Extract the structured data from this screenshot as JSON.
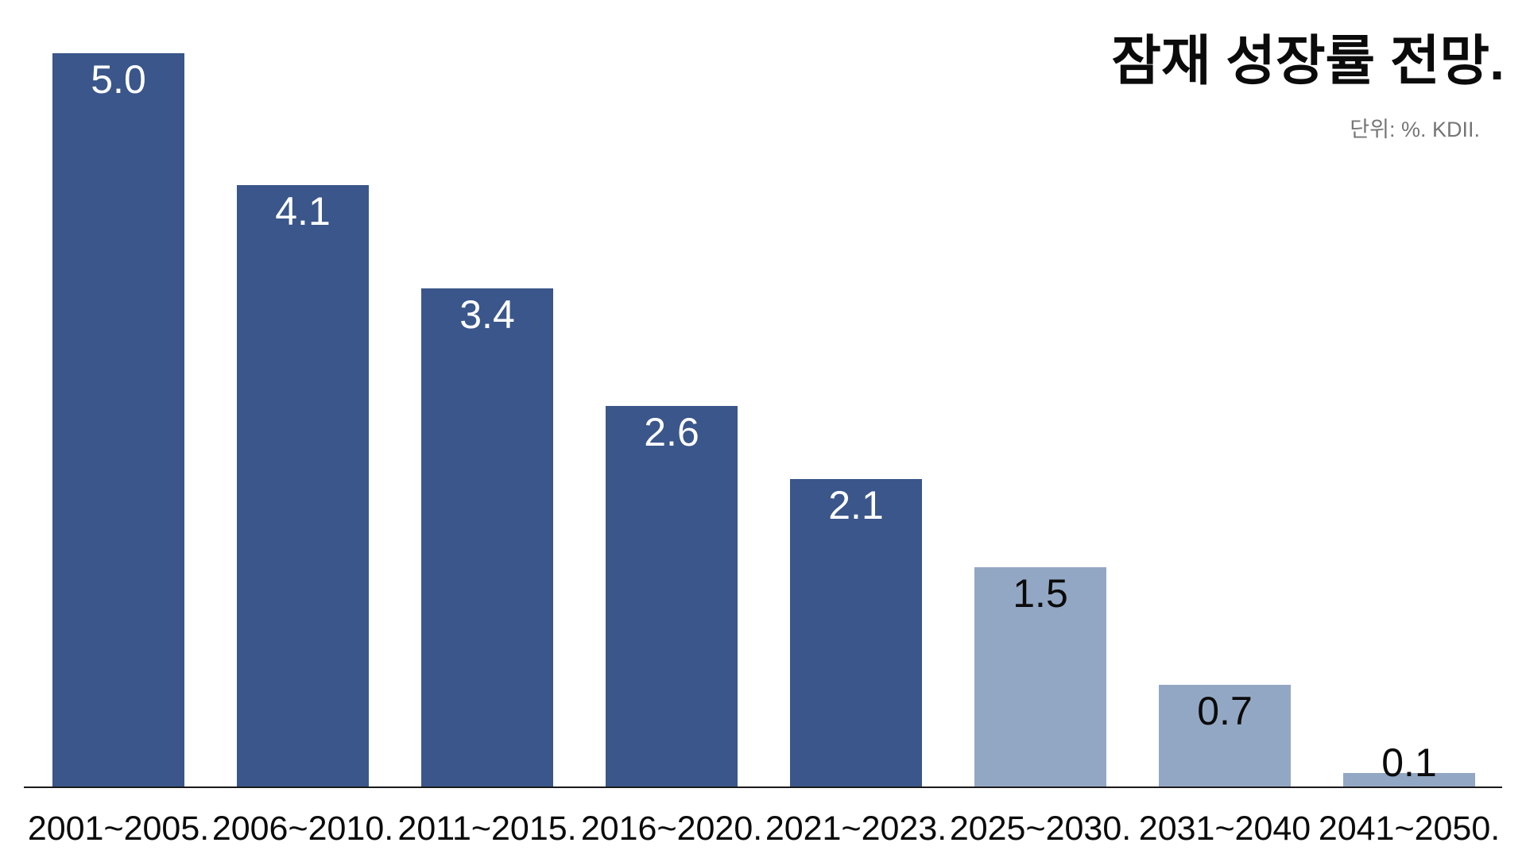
{
  "header": {
    "title": "잠재 성장률 전망.",
    "unit_source": "단위: %. KDII."
  },
  "chart_data": {
    "type": "bar",
    "title": "잠재 성장률 전망.",
    "subtitle": "단위: %. KDII.",
    "categories": [
      "2001~2005.",
      "2006~2010.",
      "2011~2015.",
      "2016~2020.",
      "2021~2023.",
      "2025~2030.",
      "2031~2040",
      "2041~2050."
    ],
    "values": [
      5.0,
      4.1,
      3.4,
      2.6,
      2.1,
      1.5,
      0.7,
      0.1
    ],
    "value_labels": [
      "5.0",
      "4.1",
      "3.4",
      "2.6",
      "2.1",
      "1.5",
      "0.7",
      "0.1"
    ],
    "bar_colors": [
      "#3A568A",
      "#3A568A",
      "#3A568A",
      "#3A568A",
      "#3A568A",
      "#92A7C3",
      "#92A7C3",
      "#92A7C3"
    ],
    "value_label_colors": [
      "#ffffff",
      "#ffffff",
      "#ffffff",
      "#ffffff",
      "#ffffff",
      "#0b0b0b",
      "#0b0b0b",
      "#0b0b0b"
    ],
    "series_note": {
      "historical_color": "#3A568A",
      "forecast_color": "#92A7C3",
      "forecast_starts_at_category": "2025~2030."
    },
    "xlabel": "",
    "ylabel": "",
    "ylim": [
      0,
      5.35
    ],
    "grid": false,
    "legend_position": "none",
    "axis_line_color": "#1a1a1a",
    "background_color": "#ffffff"
  }
}
